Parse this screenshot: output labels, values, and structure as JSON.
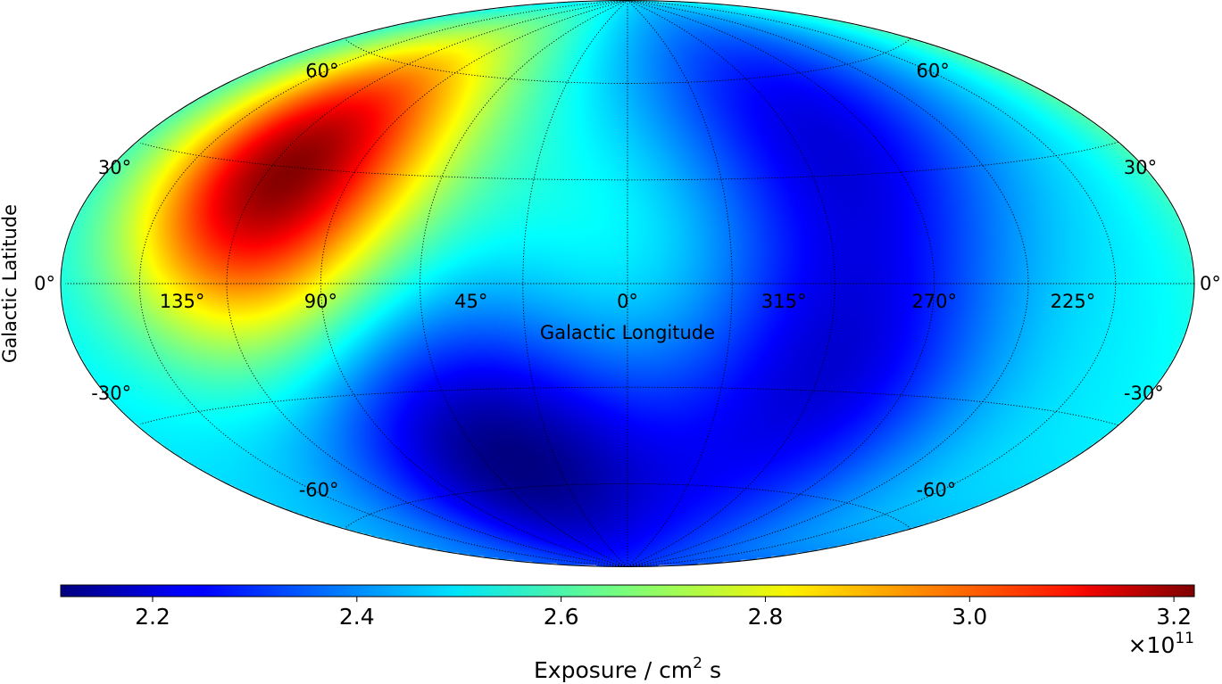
{
  "chart_data": {
    "type": "heatmap",
    "projection": "Hammer-Aitoff (all-sky, Galactic)",
    "colormap": "jet",
    "xlabel": "Galactic Longitude",
    "ylabel": "Galactic Latitude",
    "longitude_ticks": [
      135,
      90,
      45,
      0,
      315,
      270,
      225
    ],
    "longitude_tick_labels": [
      "135°",
      "90°",
      "45°",
      "0°",
      "315°",
      "270°",
      "225°"
    ],
    "latitude_ticks": [
      60,
      30,
      0,
      -30,
      -60
    ],
    "latitude_tick_labels": [
      "60°",
      "30°",
      "0°",
      "-30°",
      "-60°"
    ],
    "grid": true,
    "colorbar": {
      "label_main": "Exposure / cm",
      "label_sup": "2",
      "label_tail": " s",
      "range": [
        2.11,
        3.22
      ],
      "ticks": [
        2.2,
        2.4,
        2.6,
        2.8,
        3.0,
        3.2
      ],
      "tick_labels": [
        "2.2",
        "2.4",
        "2.6",
        "2.8",
        "3.0",
        "3.2"
      ],
      "multiplier_base": "×10",
      "multiplier_exp": "11"
    },
    "features": [
      {
        "kind": "maximum",
        "l": 112,
        "b": 28,
        "value": 3.22
      },
      {
        "kind": "minimum",
        "l": 50,
        "b": -50,
        "value": 2.11
      },
      {
        "kind": "minimum",
        "l": 300,
        "b": -25,
        "value": 2.22
      },
      {
        "kind": "minimum",
        "l": 292,
        "b": 45,
        "value": 2.22
      },
      {
        "kind": "local",
        "l": 350,
        "b": 10,
        "value": 2.6
      }
    ]
  }
}
